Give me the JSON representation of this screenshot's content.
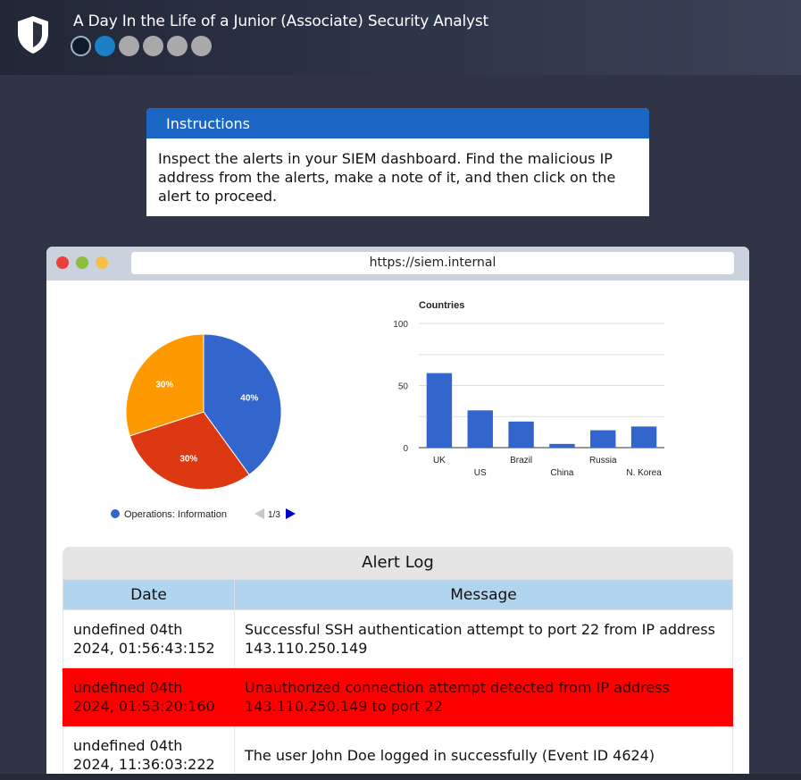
{
  "header": {
    "title": "A Day In the Life of a Junior (Associate) Security Analyst",
    "progress": [
      "done",
      "current",
      "todo",
      "todo",
      "todo",
      "todo"
    ]
  },
  "instructions": {
    "heading": "Instructions",
    "body": "Inspect the alerts in your SIEM dashboard. Find the malicious IP address from the alerts, make a note of it, and then click on the alert to proceed."
  },
  "browser": {
    "url": "https://siem.internal"
  },
  "charts": {
    "pie": {
      "slices": [
        {
          "label": "40%",
          "value": 40,
          "color": "#3366cc"
        },
        {
          "label": "30%",
          "value": 30,
          "color": "#dc3912"
        },
        {
          "label": "30%",
          "value": 30,
          "color": "#ff9900"
        }
      ],
      "legend_label": "Operations: Information",
      "legend_color": "#3366cc",
      "legend_page": "1/3"
    },
    "bar": {
      "title": "Countries",
      "categories": [
        "UK",
        "US",
        "Brazil",
        "China",
        "Russia",
        "N. Korea"
      ],
      "values": [
        60,
        30,
        21,
        3,
        14,
        17
      ],
      "ylim": [
        0,
        100
      ],
      "yticks": [
        "0",
        "50",
        "100"
      ],
      "color": "#3366cc"
    }
  },
  "chart_data": [
    {
      "type": "pie",
      "categories": [
        "Operations: Information",
        "",
        ""
      ],
      "values": [
        40,
        30,
        30
      ]
    },
    {
      "type": "bar",
      "title": "Countries",
      "categories": [
        "UK",
        "US",
        "Brazil",
        "China",
        "Russia",
        "N. Korea"
      ],
      "values": [
        60,
        30,
        21,
        3,
        14,
        17
      ],
      "ylim": [
        0,
        100
      ]
    }
  ],
  "alert_log": {
    "title": "Alert Log",
    "columns": [
      "Date",
      "Message"
    ],
    "rows": [
      {
        "date": "undefined 04th 2024, 01:56:43:152",
        "message": "Successful SSH authentication attempt to port 22 from IP address 143.110.250.149",
        "severity": "normal"
      },
      {
        "date": "undefined 04th 2024, 01:53:20:160",
        "message": "Unauthorized connection attempt detected from IP address 143.110.250.149 to port 22",
        "severity": "danger"
      },
      {
        "date": "undefined 04th 2024, 11:36:03:222",
        "message": "The user John Doe logged in successfully (Event ID 4624)",
        "severity": "normal"
      }
    ]
  }
}
